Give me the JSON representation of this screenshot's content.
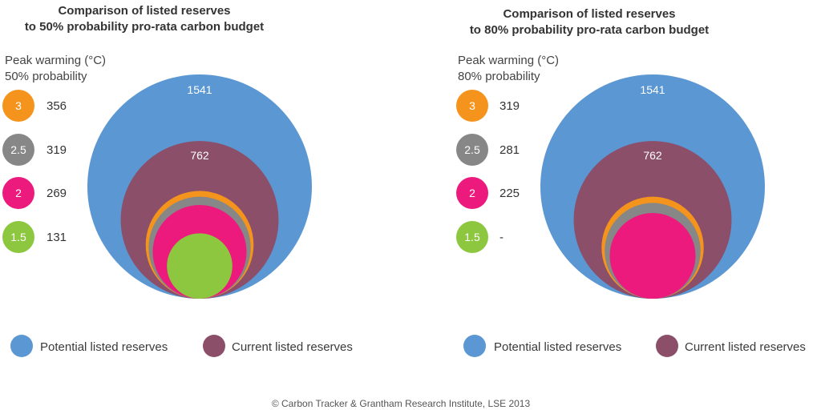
{
  "colors": {
    "potential": "#5b97d2",
    "current": "#8b4f6a",
    "w3": "#f5941d",
    "w25": "#878787",
    "w2": "#ec1a7d",
    "w15": "#8dc63f"
  },
  "legend": {
    "potential": "Potential listed reserves",
    "current": "Current listed reserves"
  },
  "credit": "© Carbon Tracker & Grantham Research Institute, LSE 2013",
  "chart_data": [
    {
      "type": "bubble",
      "title": [
        "Comparison of listed reserves",
        "to 50% probability pro-rata carbon budget"
      ],
      "side_label": [
        "Peak warming (°C)",
        "50% probability"
      ],
      "potential": {
        "label": "1541",
        "value": 1541
      },
      "current": {
        "label": "762",
        "value": 762
      },
      "rows": [
        {
          "warming": "3",
          "value": "356",
          "amount": 356,
          "color_key": "w3"
        },
        {
          "warming": "2.5",
          "value": "319",
          "amount": 319,
          "color_key": "w25"
        },
        {
          "warming": "2",
          "value": "269",
          "amount": 269,
          "color_key": "w2"
        },
        {
          "warming": "1.5",
          "value": "131",
          "amount": 131,
          "color_key": "w15"
        }
      ]
    },
    {
      "type": "bubble",
      "title": [
        "Comparison of listed reserves",
        "to 80% probability pro-rata carbon budget"
      ],
      "side_label": [
        "Peak warming (°C)",
        "80% probability"
      ],
      "potential": {
        "label": "1541",
        "value": 1541
      },
      "current": {
        "label": "762",
        "value": 762
      },
      "rows": [
        {
          "warming": "3",
          "value": "319",
          "amount": 319,
          "color_key": "w3"
        },
        {
          "warming": "2.5",
          "value": "281",
          "amount": 281,
          "color_key": "w25"
        },
        {
          "warming": "2",
          "value": "225",
          "amount": 225,
          "color_key": "w2"
        },
        {
          "warming": "1.5",
          "value": "-",
          "amount": null,
          "color_key": "w15"
        }
      ]
    }
  ]
}
